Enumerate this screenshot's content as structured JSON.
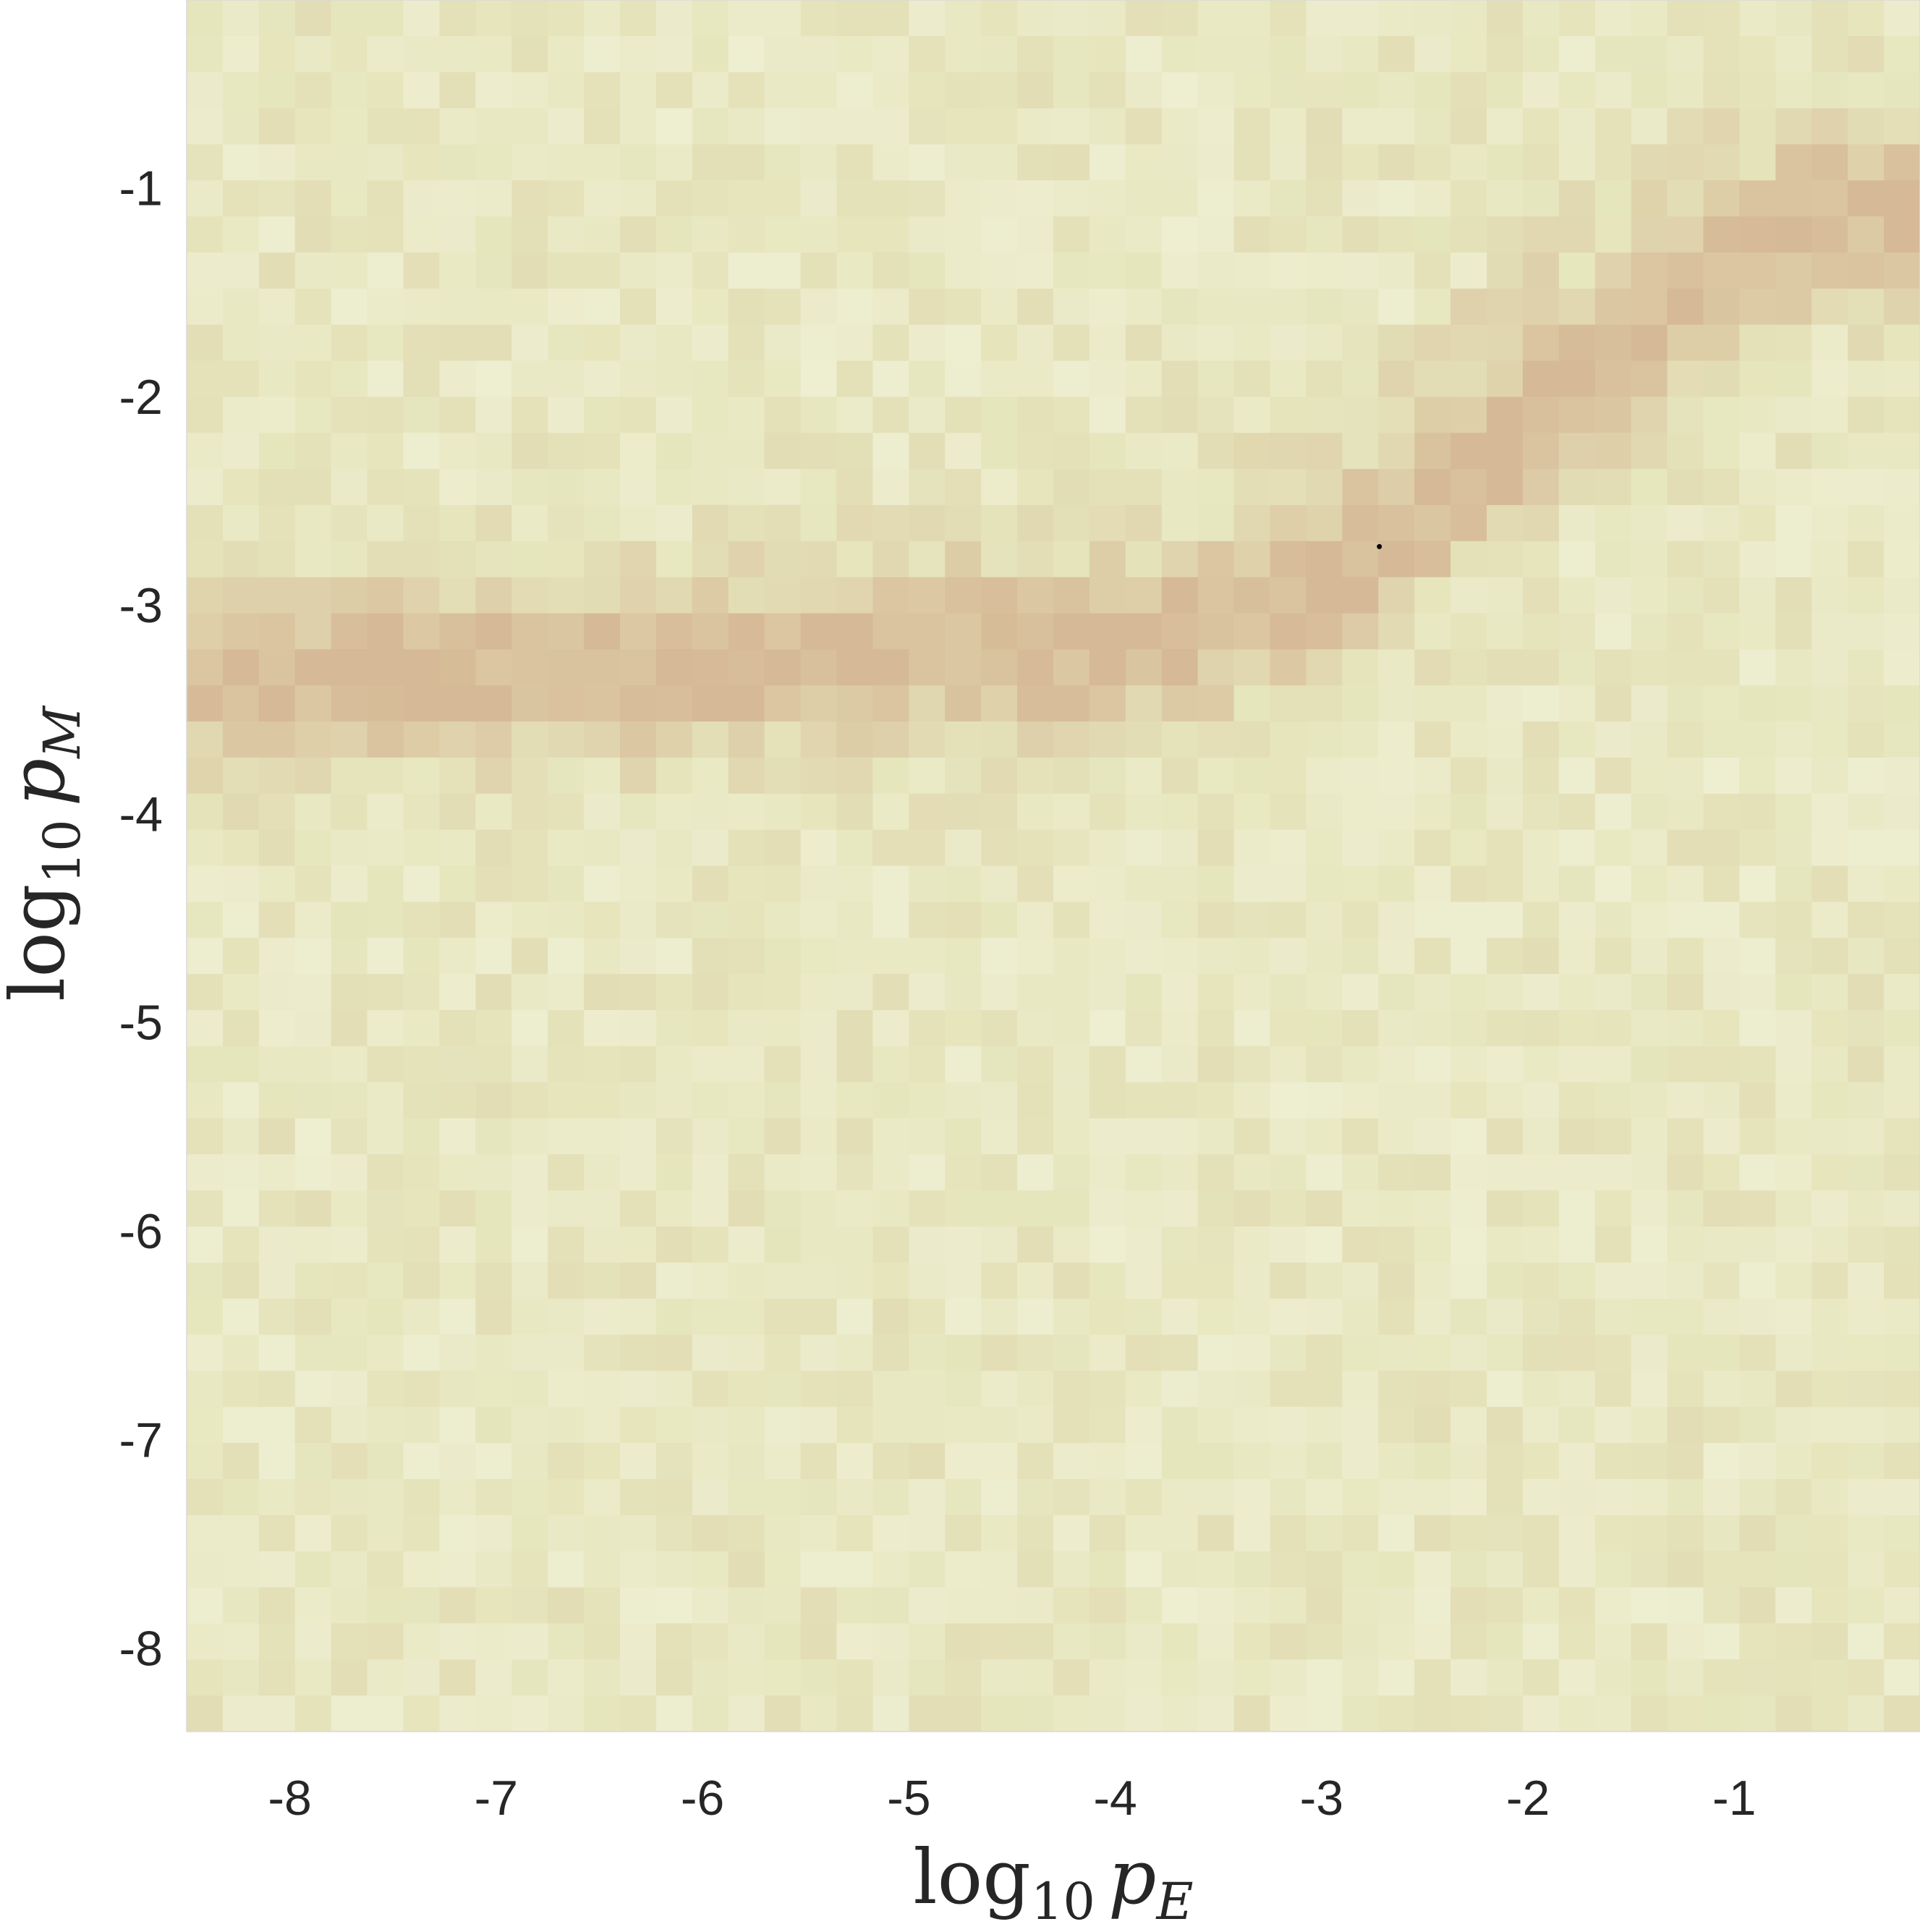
{
  "chart_data": {
    "type": "heatmap",
    "title": "",
    "xlabel": {
      "base": "log",
      "sub": "10",
      "var": "p",
      "var_sub": "E"
    },
    "ylabel": {
      "base": "log",
      "sub": "10",
      "var": "p",
      "var_sub": "M"
    },
    "xlim": [
      -8.5,
      -0.1
    ],
    "ylim": [
      -8.4,
      -0.1
    ],
    "xticks": [
      -8,
      -7,
      -6,
      -5,
      -4,
      -3,
      -2,
      -1
    ],
    "yticks": [
      -1,
      -2,
      -3,
      -4,
      -5,
      -6,
      -7,
      -8
    ],
    "xtick_labels": [
      "-8",
      "-7",
      "-6",
      "-5",
      "-4",
      "-3",
      "-2",
      "-1"
    ],
    "ytick_labels": [
      "-1",
      "-2",
      "-3",
      "-4",
      "-5",
      "-6",
      "-7",
      "-8"
    ],
    "grid": {
      "cols": 48,
      "rows": 48
    },
    "colormap": [
      "#f9f9ee",
      "#e6e6bd",
      "#d6b996"
    ],
    "value_range": [
      0,
      1
    ],
    "high_band": [
      {
        "x": -8.3,
        "y": -3.35
      },
      {
        "x": -7.0,
        "y": -3.3
      },
      {
        "x": -6.0,
        "y": -3.3
      },
      {
        "x": -5.0,
        "y": -3.2
      },
      {
        "x": -4.0,
        "y": -3.2
      },
      {
        "x": -3.3,
        "y": -3.0
      },
      {
        "x": -2.9,
        "y": -2.8
      },
      {
        "x": -2.5,
        "y": -2.55
      },
      {
        "x": -2.2,
        "y": -2.3
      },
      {
        "x": -1.9,
        "y": -2.05
      },
      {
        "x": -1.5,
        "y": -1.75
      },
      {
        "x": -1.0,
        "y": -1.35
      },
      {
        "x": -0.5,
        "y": -1.1
      }
    ],
    "marker": {
      "x": -2.72,
      "y": -2.72
    }
  }
}
